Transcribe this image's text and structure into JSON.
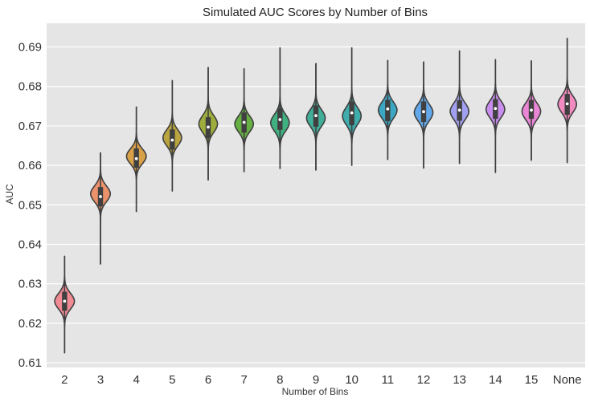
{
  "chart_data": {
    "type": "violin",
    "title": "Simulated AUC Scores by Number of Bins",
    "xlabel": "Number of Bins",
    "ylabel": "AUC",
    "ylim": [
      0.6088,
      0.696
    ],
    "yticks": [
      0.61,
      0.62,
      0.63,
      0.64,
      0.65,
      0.66,
      0.67,
      0.68,
      0.69
    ],
    "grid": true,
    "background": "#e5e5e5",
    "categories": [
      "2",
      "3",
      "4",
      "5",
      "6",
      "7",
      "8",
      "9",
      "10",
      "11",
      "12",
      "13",
      "14",
      "15",
      "None"
    ],
    "colors": [
      "#f08a93",
      "#eb926b",
      "#d8a047",
      "#b9a43f",
      "#9ead3c",
      "#66b043",
      "#3fb07f",
      "#40ae99",
      "#3eadac",
      "#3ba7c2",
      "#63a8ea",
      "#a2a0f0",
      "#c98ded",
      "#ea86d6",
      "#f28bc0"
    ],
    "series": [
      {
        "category": "2",
        "min": 0.6125,
        "q1": 0.6232,
        "median": 0.6256,
        "q3": 0.628,
        "max": 0.637,
        "mode": 0.6256,
        "spread": 0.002,
        "width": 0.55
      },
      {
        "category": "3",
        "min": 0.635,
        "q1": 0.6496,
        "median": 0.6521,
        "q3": 0.6545,
        "max": 0.6632,
        "mode": 0.6528,
        "spread": 0.002,
        "width": 0.55
      },
      {
        "category": "4",
        "min": 0.6483,
        "q1": 0.6594,
        "median": 0.6617,
        "q3": 0.6643,
        "max": 0.6748,
        "mode": 0.6623,
        "spread": 0.0019,
        "width": 0.55
      },
      {
        "category": "5",
        "min": 0.6535,
        "q1": 0.664,
        "median": 0.6664,
        "q3": 0.6691,
        "max": 0.6815,
        "mode": 0.667,
        "spread": 0.002,
        "width": 0.52
      },
      {
        "category": "6",
        "min": 0.6563,
        "q1": 0.6669,
        "median": 0.6697,
        "q3": 0.6722,
        "max": 0.6848,
        "mode": 0.6705,
        "spread": 0.0021,
        "width": 0.52
      },
      {
        "category": "7",
        "min": 0.6584,
        "q1": 0.6683,
        "median": 0.6709,
        "q3": 0.6734,
        "max": 0.6845,
        "mode": 0.6705,
        "spread": 0.002,
        "width": 0.52
      },
      {
        "category": "8",
        "min": 0.6592,
        "q1": 0.669,
        "median": 0.6716,
        "q3": 0.6745,
        "max": 0.6898,
        "mode": 0.6708,
        "spread": 0.0021,
        "width": 0.52
      },
      {
        "category": "9",
        "min": 0.6588,
        "q1": 0.6698,
        "median": 0.6726,
        "q3": 0.6752,
        "max": 0.6858,
        "mode": 0.672,
        "spread": 0.0021,
        "width": 0.52
      },
      {
        "category": "10",
        "min": 0.66,
        "q1": 0.6702,
        "median": 0.6733,
        "q3": 0.6762,
        "max": 0.6898,
        "mode": 0.6725,
        "spread": 0.0022,
        "width": 0.52
      },
      {
        "category": "11",
        "min": 0.6615,
        "q1": 0.6712,
        "median": 0.6743,
        "q3": 0.6766,
        "max": 0.6866,
        "mode": 0.674,
        "spread": 0.0021,
        "width": 0.52
      },
      {
        "category": "12",
        "min": 0.6593,
        "q1": 0.671,
        "median": 0.6736,
        "q3": 0.6762,
        "max": 0.6862,
        "mode": 0.6734,
        "spread": 0.0021,
        "width": 0.52
      },
      {
        "category": "13",
        "min": 0.6605,
        "q1": 0.6713,
        "median": 0.674,
        "q3": 0.6765,
        "max": 0.689,
        "mode": 0.6737,
        "spread": 0.0021,
        "width": 0.52
      },
      {
        "category": "14",
        "min": 0.6582,
        "q1": 0.6718,
        "median": 0.6744,
        "q3": 0.6768,
        "max": 0.6868,
        "mode": 0.6742,
        "spread": 0.0021,
        "width": 0.52
      },
      {
        "category": "15",
        "min": 0.6613,
        "q1": 0.6718,
        "median": 0.674,
        "q3": 0.6766,
        "max": 0.6865,
        "mode": 0.6737,
        "spread": 0.0021,
        "width": 0.52
      },
      {
        "category": "None",
        "min": 0.6607,
        "q1": 0.6728,
        "median": 0.6756,
        "q3": 0.6781,
        "max": 0.6922,
        "mode": 0.6755,
        "spread": 0.0021,
        "width": 0.52
      }
    ]
  }
}
